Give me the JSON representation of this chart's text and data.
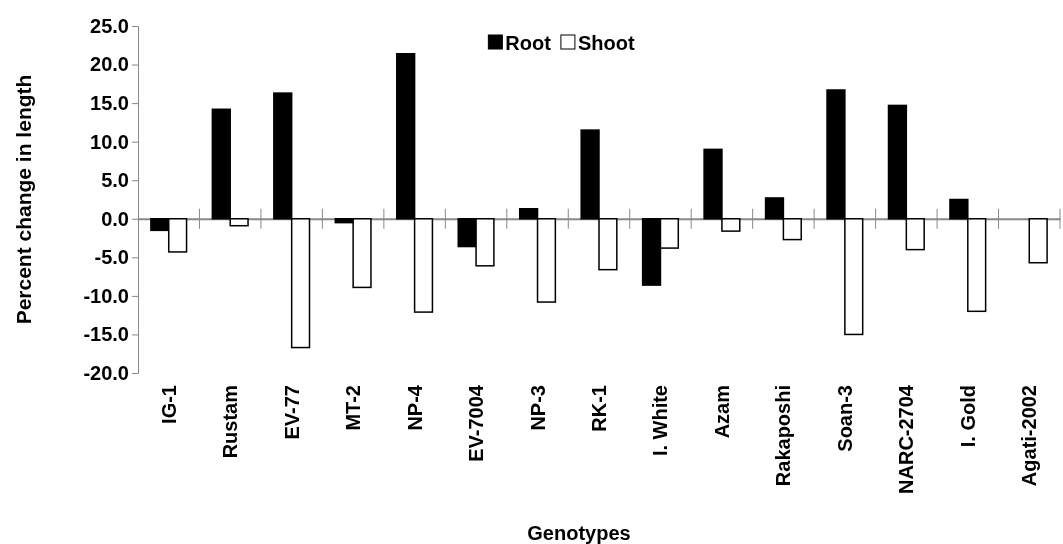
{
  "chart_data": {
    "type": "bar",
    "xlabel": "Genotypes",
    "ylabel": "Percent change in length",
    "categories": [
      "IG-1",
      "Rustam",
      "EV-77",
      "MT-2",
      "NP-4",
      "EV-7004",
      "NP-3",
      "RK-1",
      "I. White",
      "Azam",
      "Rakaposhi",
      "Soan-3",
      "NARC-2704",
      "I. Gold",
      "Agati-2002"
    ],
    "series": [
      {
        "name": "Root",
        "color": "#000000",
        "values": [
          -1.5,
          14.2,
          16.3,
          -0.5,
          21.4,
          -3.6,
          1.3,
          11.5,
          -8.6,
          9.0,
          2.7,
          16.7,
          14.7,
          2.5,
          0
        ]
      },
      {
        "name": "Shoot",
        "color": "#ffffff",
        "values": [
          -4.3,
          -0.9,
          -16.7,
          -8.9,
          -12.1,
          -6.1,
          -10.8,
          -6.6,
          -3.8,
          -1.6,
          -2.7,
          -15.0,
          -4.0,
          -12.0,
          -5.7
        ]
      }
    ],
    "ylim": [
      -20,
      25
    ],
    "yticks": [
      {
        "value": -20,
        "label": "-20.0"
      },
      {
        "value": -15,
        "label": "-15.0"
      },
      {
        "value": -10,
        "label": "-10.0"
      },
      {
        "value": -5,
        "label": "-5.0"
      },
      {
        "value": 0,
        "label": "0.0"
      },
      {
        "value": 5,
        "label": "5.0"
      },
      {
        "value": 10,
        "label": "10.0"
      },
      {
        "value": 15,
        "label": "15.0"
      },
      {
        "value": 20,
        "label": "20.0"
      },
      {
        "value": 25,
        "label": "25.0"
      }
    ],
    "legend": "top"
  }
}
